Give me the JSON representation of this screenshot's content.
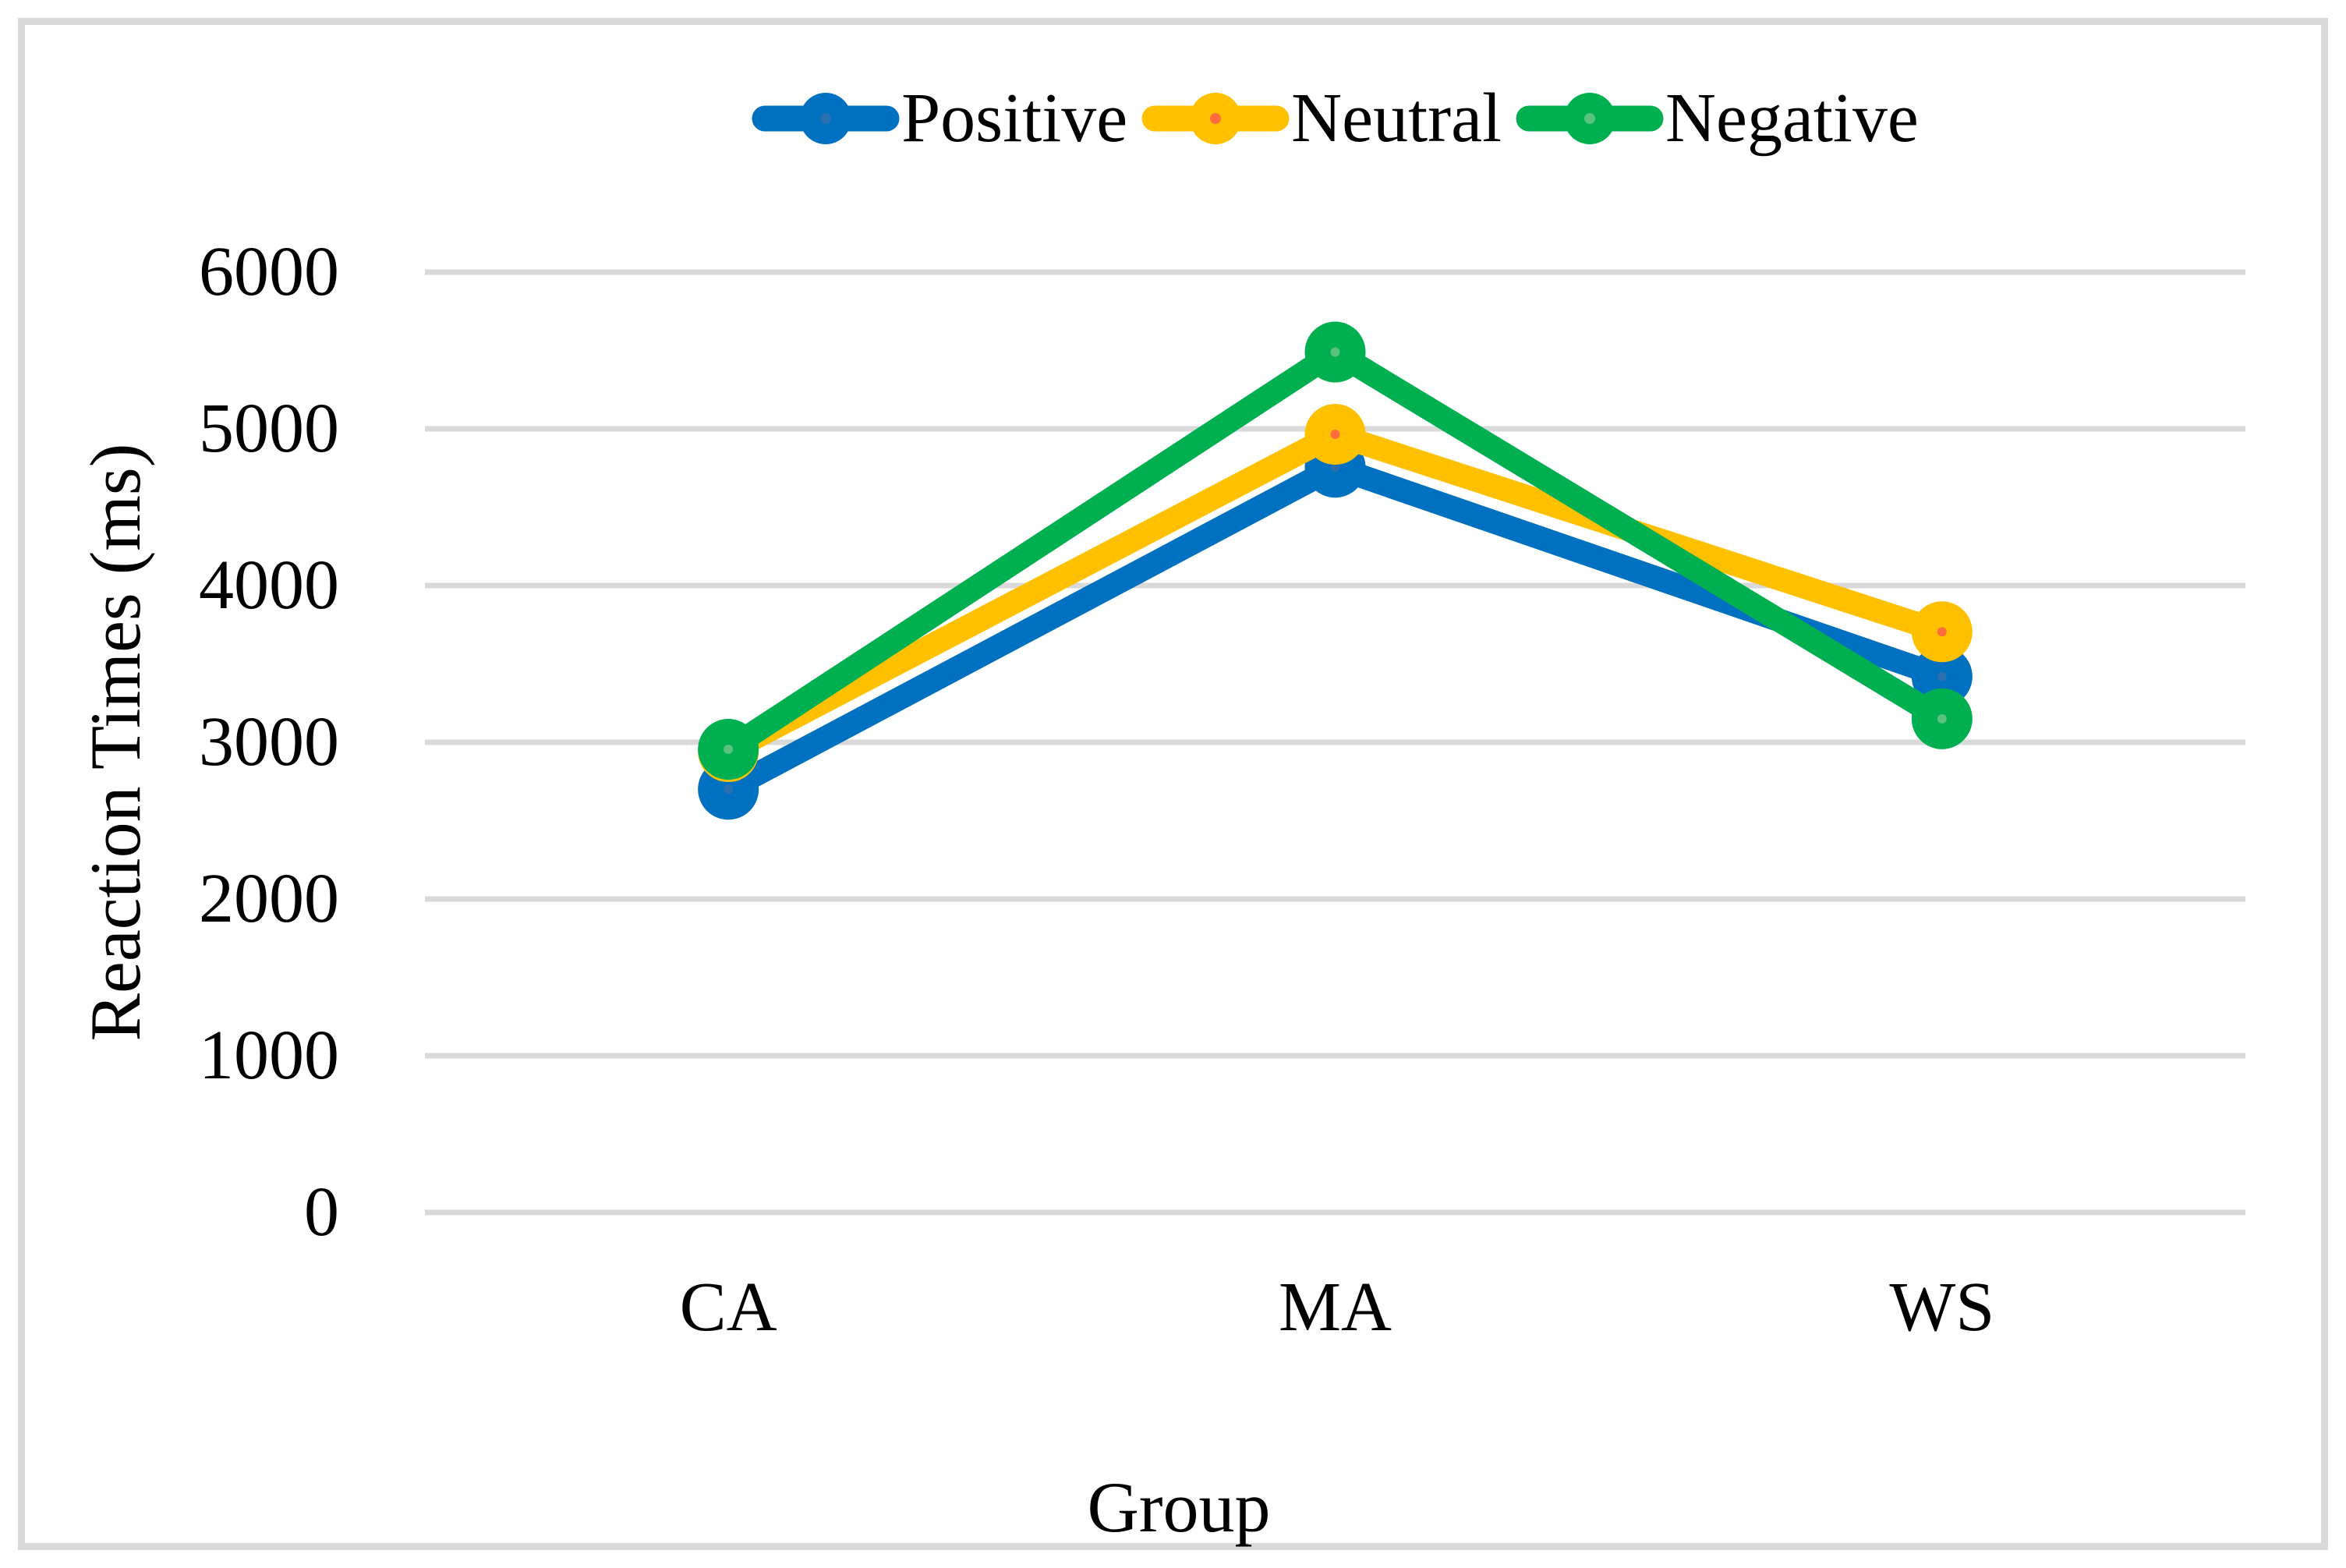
{
  "figure": {
    "background": "#FFFFFF",
    "frame_border_color": "#D9D9D9"
  },
  "chart_data": {
    "type": "line",
    "title": "",
    "xlabel": "Group",
    "ylabel": "Reaction Times (ms)",
    "categories": [
      "CA",
      "MA",
      "WS"
    ],
    "ylim": [
      0,
      6000
    ],
    "ytick_interval": 1000,
    "ytick_labels": [
      "6000",
      "5000",
      "4000",
      "3000",
      "2000",
      "1000",
      "0"
    ],
    "grid": "horizontal",
    "gridline_color": "#D9D9D9",
    "legend_position": "top-center",
    "marker": "circle",
    "series": [
      {
        "name": "Positive",
        "color": "#0070C0",
        "dot_color": "#2A70B0",
        "values": [
          2700,
          4755,
          3420
        ]
      },
      {
        "name": "Neutral",
        "color": "#FFC000",
        "dot_color": "#FF6D3F",
        "values": [
          2940,
          4965,
          3705
        ]
      },
      {
        "name": "Negative",
        "color": "#00B050",
        "dot_color": "#5BC17F",
        "values": [
          2955,
          5490,
          3150
        ]
      }
    ]
  }
}
